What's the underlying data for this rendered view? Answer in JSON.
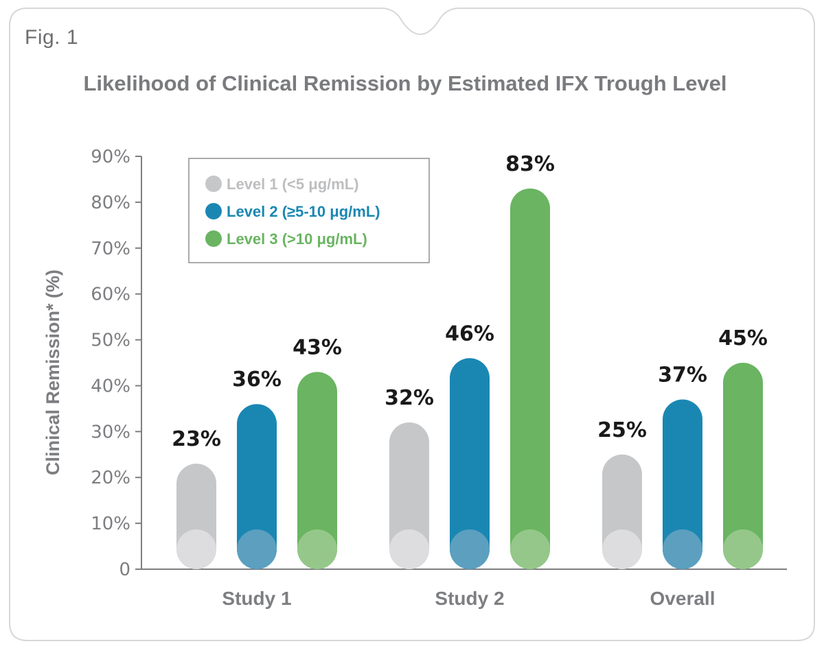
{
  "figure": {
    "label": "Fig. 1",
    "title": "Likelihood of Clinical Remission by Estimated IFX Trough Level"
  },
  "chart_data": {
    "type": "bar",
    "title": "Likelihood of Clinical Remission by Estimated IFX Trough Level",
    "xlabel": "",
    "ylabel": "Clinical Remission* (%)",
    "ylim": [
      0,
      90
    ],
    "yticks": [
      0,
      10,
      20,
      30,
      40,
      50,
      60,
      70,
      80,
      90
    ],
    "ytick_labels": [
      "0",
      "10%",
      "20%",
      "30%",
      "40%",
      "50%",
      "60%",
      "70%",
      "80%",
      "90%"
    ],
    "categories": [
      "Study 1",
      "Study 2",
      "Overall"
    ],
    "series": [
      {
        "name": "Level 1 (<5 μg/mL)",
        "color": "#c6c7c9",
        "base_color": "#dddddf",
        "values": [
          23,
          32,
          25
        ],
        "labels": [
          "23%",
          "32%",
          "25%"
        ]
      },
      {
        "name": "Level 2 (≥5-10 μg/mL)",
        "color": "#1a87b3",
        "base_color": "#5c9fbf",
        "values": [
          36,
          46,
          37
        ],
        "labels": [
          "36%",
          "46%",
          "37%"
        ]
      },
      {
        "name": "Level 3 (>10 μg/mL)",
        "color": "#6ab462",
        "base_color": "#95c78a",
        "values": [
          43,
          83,
          45
        ],
        "labels": [
          "43%",
          "83%",
          "45%"
        ]
      }
    ],
    "legend_position": "top-left",
    "grid": false
  }
}
